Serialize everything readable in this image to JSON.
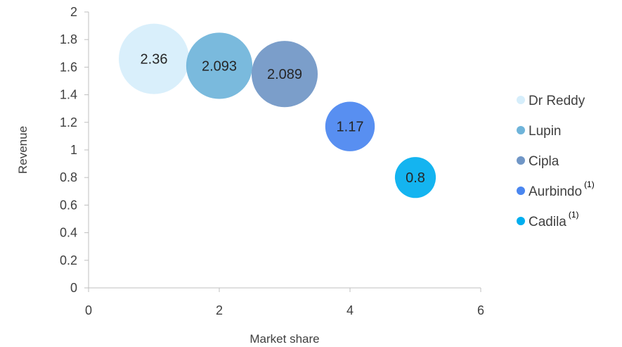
{
  "chart_data": {
    "type": "bubble",
    "xlabel": "Market share",
    "ylabel": "Revenue",
    "xlim": [
      0,
      6
    ],
    "ylim": [
      0,
      2
    ],
    "x_ticks": [
      "0",
      "2",
      "4",
      "6"
    ],
    "y_ticks": [
      "0",
      "0.2",
      "0.4",
      "0.6",
      "0.8",
      "1",
      "1.2",
      "1.4",
      "1.6",
      "1.8",
      "2"
    ],
    "grid": false,
    "legend_position": "right",
    "series": [
      {
        "name": "Dr Reddy",
        "note": "",
        "x": 1,
        "y": 1.66,
        "size": 2.36,
        "label": "2.36",
        "color": "#D6EEFB"
      },
      {
        "name": "Lupin",
        "note": "",
        "x": 2,
        "y": 1.61,
        "size": 2.093,
        "label": "2.093",
        "color": "#6FB4DA"
      },
      {
        "name": "Cipla",
        "note": "",
        "x": 3,
        "y": 1.55,
        "size": 2.089,
        "label": "2.089",
        "color": "#7096C6"
      },
      {
        "name": "Aurbindo",
        "note": "(1)",
        "x": 4,
        "y": 1.17,
        "size": 1.17,
        "label": "1.17",
        "color": "#4A86F0"
      },
      {
        "name": "Cadila",
        "note": "(1)",
        "x": 5,
        "y": 0.8,
        "size": 0.8,
        "label": "0.8",
        "color": "#00AEEF"
      }
    ]
  }
}
